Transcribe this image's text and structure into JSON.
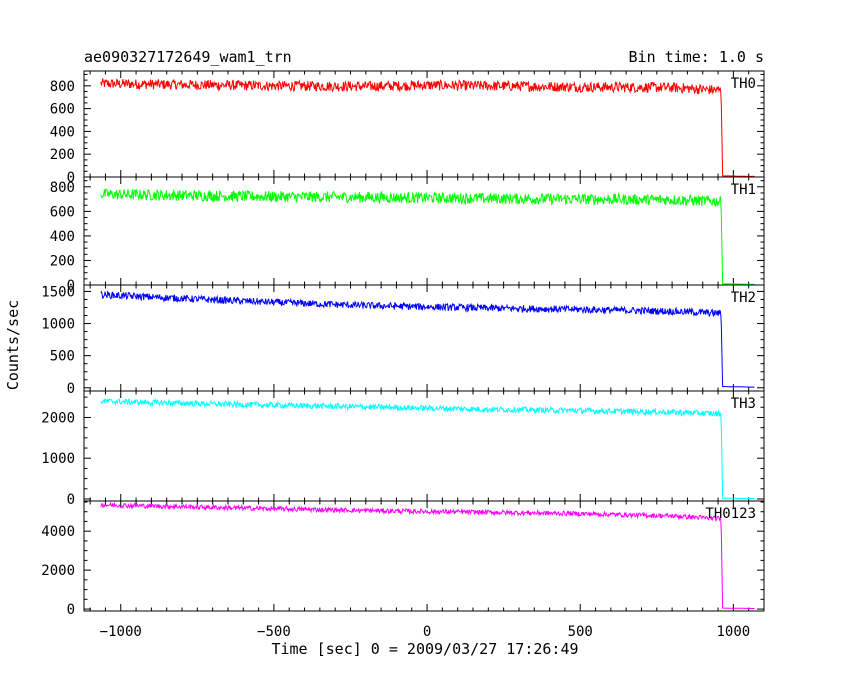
{
  "chart_data": {
    "type": "line",
    "title": "ae090327172649_wam1_trn",
    "subtitle": "Bin time: 1.0 s",
    "xlabel": "Time [sec] 0 = 2009/03/27 17:26:49",
    "ylabel": "Counts/sec",
    "xlim": [
      -1120,
      1100
    ],
    "x_ticks": [
      -1000,
      -500,
      0,
      500,
      1000
    ],
    "x_tick_labels": [
      "−1000",
      "−500",
      "0",
      "500",
      "1000"
    ],
    "grid": false,
    "panels": [
      {
        "name": "TH0",
        "color": "#ff0000",
        "ylim": [
          0,
          930
        ],
        "y_ticks": [
          0,
          200,
          400,
          600,
          800
        ],
        "y_tick_labels": [
          "0",
          "200",
          "400",
          "600",
          "800"
        ],
        "x": [
          -1065,
          -800,
          -500,
          -200,
          0,
          200,
          500,
          800,
          960,
          965,
          1070
        ],
        "values": [
          820,
          810,
          800,
          795,
          805,
          800,
          790,
          785,
          760,
          10,
          5
        ],
        "noise": 45
      },
      {
        "name": "TH1",
        "color": "#00ff00",
        "ylim": [
          0,
          880
        ],
        "y_ticks": [
          0,
          200,
          400,
          600,
          800
        ],
        "y_tick_labels": [
          "0",
          "200",
          "400",
          "600",
          "800"
        ],
        "x": [
          -1065,
          -800,
          -500,
          -200,
          0,
          200,
          500,
          800,
          960,
          965,
          1070
        ],
        "values": [
          740,
          730,
          720,
          715,
          710,
          705,
          700,
          695,
          680,
          10,
          5
        ],
        "noise": 45
      },
      {
        "name": "TH2",
        "color": "#0000ff",
        "ylim": [
          -50,
          1600
        ],
        "y_ticks": [
          0,
          500,
          1000,
          1500
        ],
        "y_tick_labels": [
          "0",
          "500",
          "1000",
          "1500"
        ],
        "x": [
          -1065,
          -800,
          -500,
          -200,
          0,
          200,
          500,
          800,
          960,
          965,
          1070
        ],
        "values": [
          1450,
          1390,
          1330,
          1280,
          1260,
          1240,
          1220,
          1190,
          1160,
          20,
          10
        ],
        "noise": 55
      },
      {
        "name": "TH3",
        "color": "#00ffff",
        "ylim": [
          -50,
          2650
        ],
        "y_ticks": [
          0,
          1000,
          2000
        ],
        "y_tick_labels": [
          "0",
          "1000",
          "2000"
        ],
        "x": [
          -1065,
          -800,
          -500,
          -200,
          0,
          200,
          500,
          800,
          960,
          965,
          1070
        ],
        "values": [
          2400,
          2350,
          2300,
          2260,
          2230,
          2200,
          2170,
          2130,
          2090,
          20,
          10
        ],
        "noise": 70
      },
      {
        "name": "TH0123",
        "color": "#ff00ff",
        "ylim": [
          -100,
          5550
        ],
        "y_ticks": [
          0,
          2000,
          4000
        ],
        "y_tick_labels": [
          "0",
          "2000",
          "4000"
        ],
        "x": [
          -1065,
          -800,
          -500,
          -200,
          0,
          200,
          500,
          800,
          960,
          965,
          1070
        ],
        "values": [
          5350,
          5260,
          5150,
          5060,
          5010,
          4970,
          4900,
          4780,
          4640,
          50,
          30
        ],
        "noise": 120
      }
    ]
  }
}
